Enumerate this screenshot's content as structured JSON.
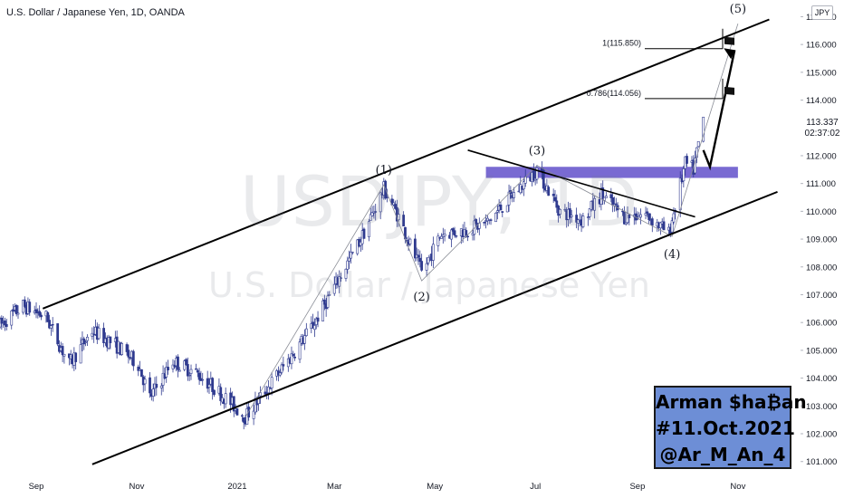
{
  "header": {
    "title": "U.S. Dollar / Japanese Yen, 1D, OANDA",
    "currency": "JPY"
  },
  "watermark": {
    "symbol": "USDJPY, 1D",
    "description": "U.S. Dollar / Japanese Yen"
  },
  "last_price": {
    "value": "113.337",
    "countdown": "02:37:02"
  },
  "signature": {
    "line1": "Arman $ha₿an",
    "line2": "#11.Oct.2021",
    "line3": "@Ar_M_An_4"
  },
  "colors": {
    "up_candle": "#2f3a8f",
    "down_candle": "#2f3a8f",
    "trend_lines": "#000000",
    "resistance_zone": "#6a5acd",
    "signature_bg": "#6d8ed6"
  },
  "chart_data": {
    "type": "candlestick",
    "title": "U.S. Dollar / Japanese Yen, 1D, OANDA",
    "ylim": [
      100.6,
      117.6
    ],
    "yticks": [
      101,
      102,
      103,
      104,
      105,
      106,
      107,
      108,
      109,
      110,
      111,
      112,
      113,
      114,
      115,
      116,
      117
    ],
    "ytick_labels": [
      "101.000",
      "102.000",
      "103.000",
      "104.000",
      "105.000",
      "106.000",
      "107.000",
      "108.000",
      "109.000",
      "110.000",
      "111.000",
      "112.000",
      "113.000",
      "114.000",
      "115.000",
      "116.000",
      "117.000"
    ],
    "xticks": [
      "2020-09-01",
      "2020-11-01",
      "2021-01-01",
      "2021-03-01",
      "2021-05-01",
      "2021-07-01",
      "2021-09-01",
      "2021-11-01"
    ],
    "xtick_labels": [
      "Sep",
      "Nov",
      "2021",
      "Mar",
      "May",
      "Jul",
      "Sep",
      "Nov"
    ],
    "xlim": [
      "2020-08-10",
      "2021-12-09"
    ],
    "price_path": [
      {
        "date": "2020-08-10",
        "close": 105.9
      },
      {
        "date": "2020-08-24",
        "close": 106.6
      },
      {
        "date": "2020-09-07",
        "close": 106.2
      },
      {
        "date": "2020-09-21",
        "close": 104.5
      },
      {
        "date": "2020-10-05",
        "close": 105.7
      },
      {
        "date": "2020-10-19",
        "close": 105.2
      },
      {
        "date": "2020-11-02",
        "close": 104.5
      },
      {
        "date": "2020-11-09",
        "close": 103.3
      },
      {
        "date": "2020-11-23",
        "close": 104.6
      },
      {
        "date": "2020-12-07",
        "close": 104.2
      },
      {
        "date": "2020-12-21",
        "close": 103.5
      },
      {
        "date": "2021-01-06",
        "close": 102.6
      },
      {
        "date": "2021-01-20",
        "close": 103.7
      },
      {
        "date": "2021-02-03",
        "close": 104.8
      },
      {
        "date": "2021-02-17",
        "close": 106.0
      },
      {
        "date": "2021-03-03",
        "close": 107.5
      },
      {
        "date": "2021-03-17",
        "close": 109.0
      },
      {
        "date": "2021-03-31",
        "close": 110.8
      },
      {
        "date": "2021-04-09",
        "close": 109.8
      },
      {
        "date": "2021-04-23",
        "close": 107.8
      },
      {
        "date": "2021-05-05",
        "close": 109.2
      },
      {
        "date": "2021-05-19",
        "close": 109.3
      },
      {
        "date": "2021-06-02",
        "close": 109.6
      },
      {
        "date": "2021-06-16",
        "close": 110.5
      },
      {
        "date": "2021-07-02",
        "close": 111.5
      },
      {
        "date": "2021-07-16",
        "close": 110.0
      },
      {
        "date": "2021-07-30",
        "close": 109.7
      },
      {
        "date": "2021-08-10",
        "close": 110.6
      },
      {
        "date": "2021-08-24",
        "close": 109.8
      },
      {
        "date": "2021-09-06",
        "close": 109.9
      },
      {
        "date": "2021-09-20",
        "close": 109.2
      },
      {
        "date": "2021-09-30",
        "close": 111.7
      },
      {
        "date": "2021-10-05",
        "close": 111.5
      },
      {
        "date": "2021-10-11",
        "close": 113.337
      }
    ],
    "wave_points": [
      {
        "label": "(1)",
        "date": "2021-03-31",
        "value": 110.95
      },
      {
        "label": "(2)",
        "date": "2021-04-23",
        "value": 107.5
      },
      {
        "label": "(3)",
        "date": "2021-07-02",
        "value": 111.65
      },
      {
        "label": "(4)",
        "date": "2021-09-22",
        "value": 109.1
      },
      {
        "label": "(5)",
        "date": "2021-11-01",
        "value": 116.75
      }
    ],
    "wave_start": {
      "date": "2021-01-06",
      "value": 102.6
    },
    "fib_levels": [
      {
        "label": "1(115.850)",
        "value": 115.85
      },
      {
        "label": "0.786(114.056)",
        "value": 114.056
      }
    ],
    "resistance_zone": {
      "from": 111.2,
      "to": 111.6,
      "start": "2021-06-01",
      "end": "2021-11-01"
    },
    "channel": {
      "upper": [
        {
          "date": "2020-09-05",
          "value": 106.5
        },
        {
          "date": "2021-11-20",
          "value": 116.9
        }
      ],
      "lower": [
        {
          "date": "2020-10-05",
          "value": 100.9
        },
        {
          "date": "2021-11-25",
          "value": 110.7
        }
      ],
      "wedge_top": [
        {
          "date": "2021-05-21",
          "value": 112.2
        },
        {
          "date": "2021-10-06",
          "value": 109.8
        }
      ]
    },
    "projection": [
      {
        "date": "2021-10-11",
        "value": 112.2
      },
      {
        "date": "2021-10-15",
        "value": 111.6
      },
      {
        "date": "2021-10-30",
        "value": 115.8
      }
    ],
    "last_price": 113.337,
    "grid": false,
    "legend": "none"
  }
}
